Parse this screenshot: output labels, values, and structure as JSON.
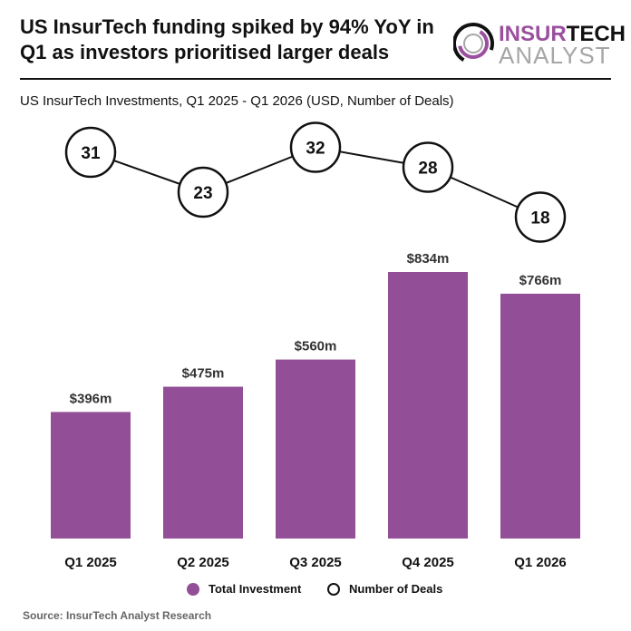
{
  "header": {
    "title": "US InsurTech funding spiked by 94% YoY in Q1 as investors prioritised larger deals",
    "subtitle": "US InsurTech Investments, Q1 2025 - Q1 2026 (USD, Number of Deals)",
    "logo_text": [
      "INSUR",
      "TECH",
      "ANALYST"
    ]
  },
  "colors": {
    "bar": "#924E96",
    "logo_purple": "#9B4F9F",
    "logo_gray": "#A6A6A6",
    "text": "#111111"
  },
  "chart_data": {
    "type": "bar+line",
    "categories": [
      "Q1 2025",
      "Q2 2025",
      "Q3 2025",
      "Q4 2025",
      "Q1 2026"
    ],
    "series": [
      {
        "name": "Total Investment",
        "type": "bar",
        "values": [
          396,
          475,
          560,
          834,
          766
        ],
        "labels": [
          "$396m",
          "$475m",
          "$560m",
          "$834m",
          "$766m"
        ]
      },
      {
        "name": "Number of Deals",
        "type": "line",
        "values": [
          31,
          23,
          32,
          28,
          18
        ]
      }
    ],
    "legend_position": "bottom",
    "grid": false
  },
  "legend": {
    "investment": "Total Investment",
    "deals": "Number of Deals"
  },
  "source": "Source: InsurTech Analyst Research"
}
